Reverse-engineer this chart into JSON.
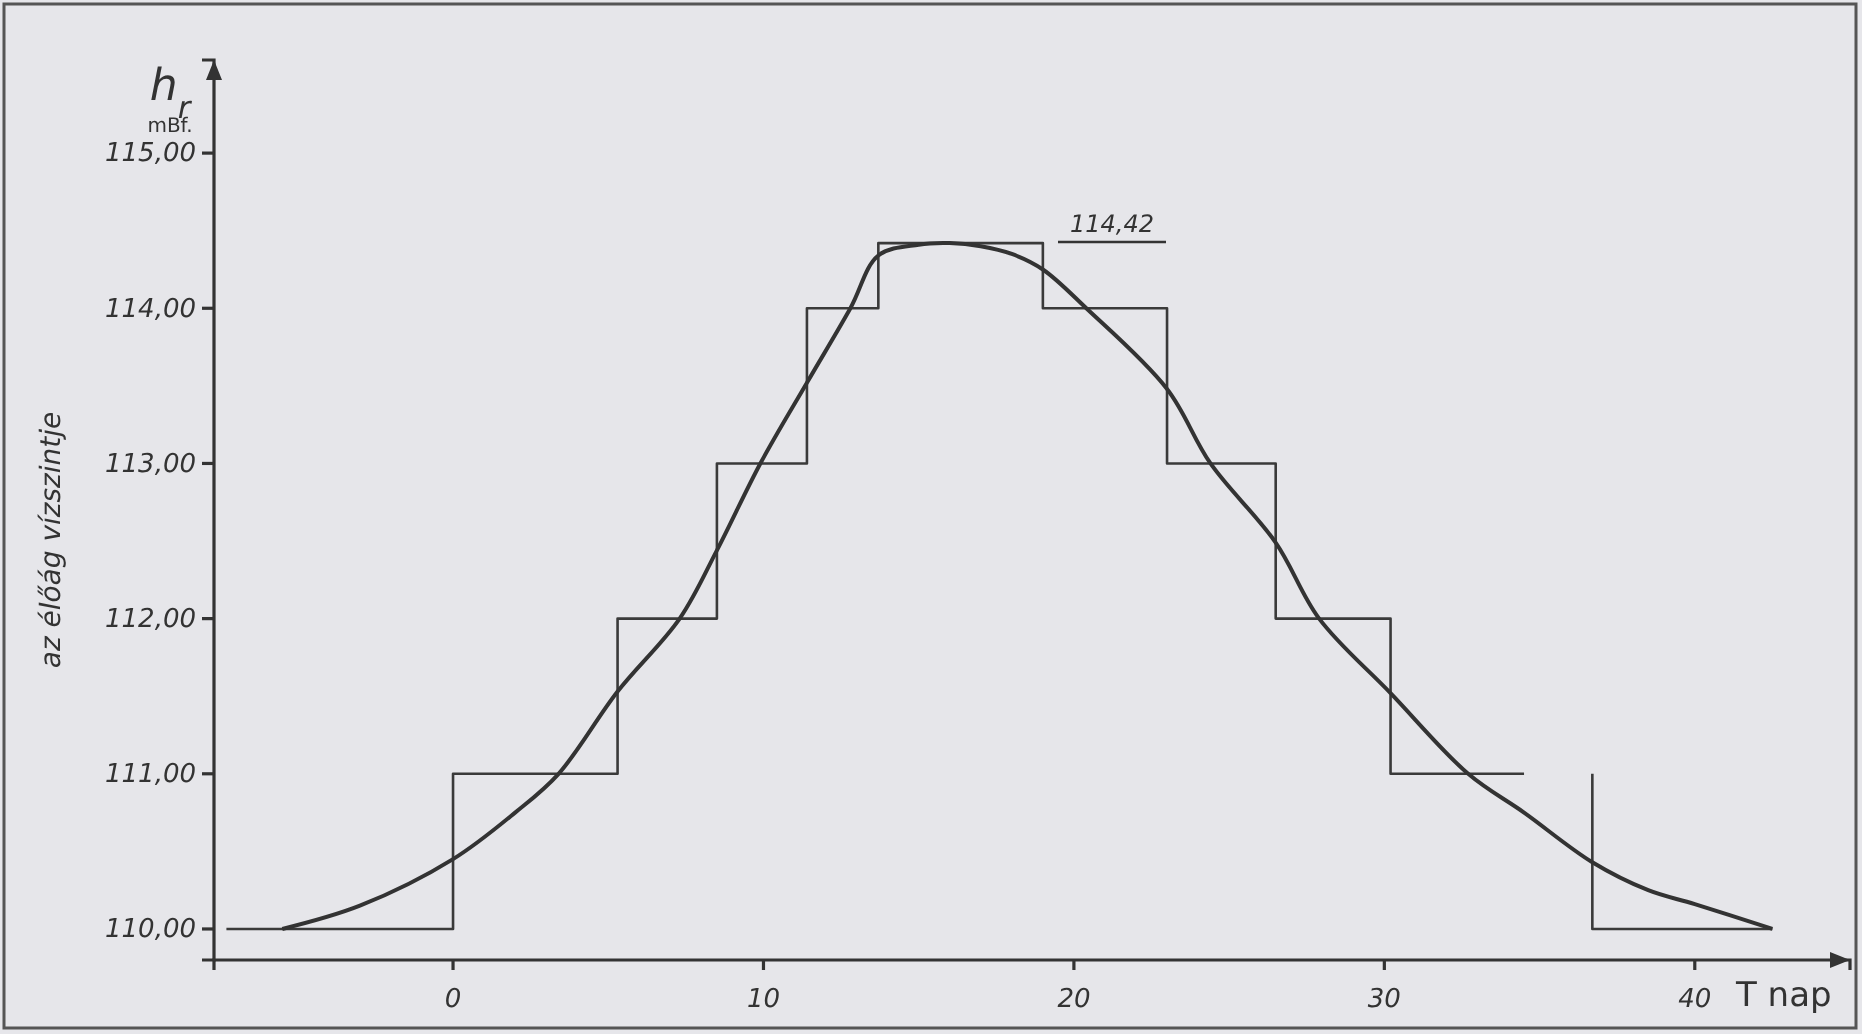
{
  "chart_data": {
    "type": "line",
    "ylabel": "az élőág vízszintje",
    "xlabel": "T nap",
    "annotations": [
      "h$_{r}$",
      "mBf.",
      "114,42"
    ],
    "xlim": [
      -7.7,
      45
    ],
    "xticks": [
      0,
      10,
      20,
      30,
      40
    ],
    "ylim": [
      109.8,
      115.6
    ],
    "yticks": [
      {
        "value": 110,
        "label": "110,00"
      },
      {
        "value": 111,
        "label": "111,00"
      },
      {
        "value": 112,
        "label": "112,00"
      },
      {
        "value": 113,
        "label": "113,00"
      },
      {
        "value": 114,
        "label": "114,00"
      },
      {
        "value": 115,
        "label": "115,00"
      }
    ],
    "grid": false,
    "marker": "none",
    "series": [
      {
        "type": "step",
        "color": "#3a3a3a",
        "x": [
          -7.3,
          0,
          5.3,
          8.5,
          11.4,
          13.7,
          19,
          23,
          26.5,
          30.2,
          34.5,
          35,
          36.7,
          36.7,
          42.5
        ],
        "values": [
          110,
          111,
          112,
          113,
          114,
          114.42,
          114,
          113,
          112,
          111,
          111,
          null,
          111,
          110,
          110
        ]
      },
      {
        "color": "#333333",
        "x": [
          -5.5,
          -3,
          0,
          2,
          3.4,
          5.3,
          7.3,
          8.5,
          9.9,
          11.4,
          12.8,
          13.7,
          15,
          16,
          17,
          18,
          19,
          20.4,
          23,
          24.4,
          26.5,
          27.9,
          30.2,
          32.7,
          34.5,
          36.7,
          38.5,
          40,
          42.5
        ],
        "values": [
          110,
          110.15,
          110.45,
          110.75,
          111,
          111.53,
          112,
          112.44,
          113,
          113.52,
          114,
          114.34,
          114.41,
          114.42,
          114.4,
          114.35,
          114.25,
          114,
          113.48,
          113,
          112.49,
          112,
          111.52,
          111,
          110.75,
          110.43,
          110.25,
          110.16,
          110
        ]
      }
    ]
  }
}
